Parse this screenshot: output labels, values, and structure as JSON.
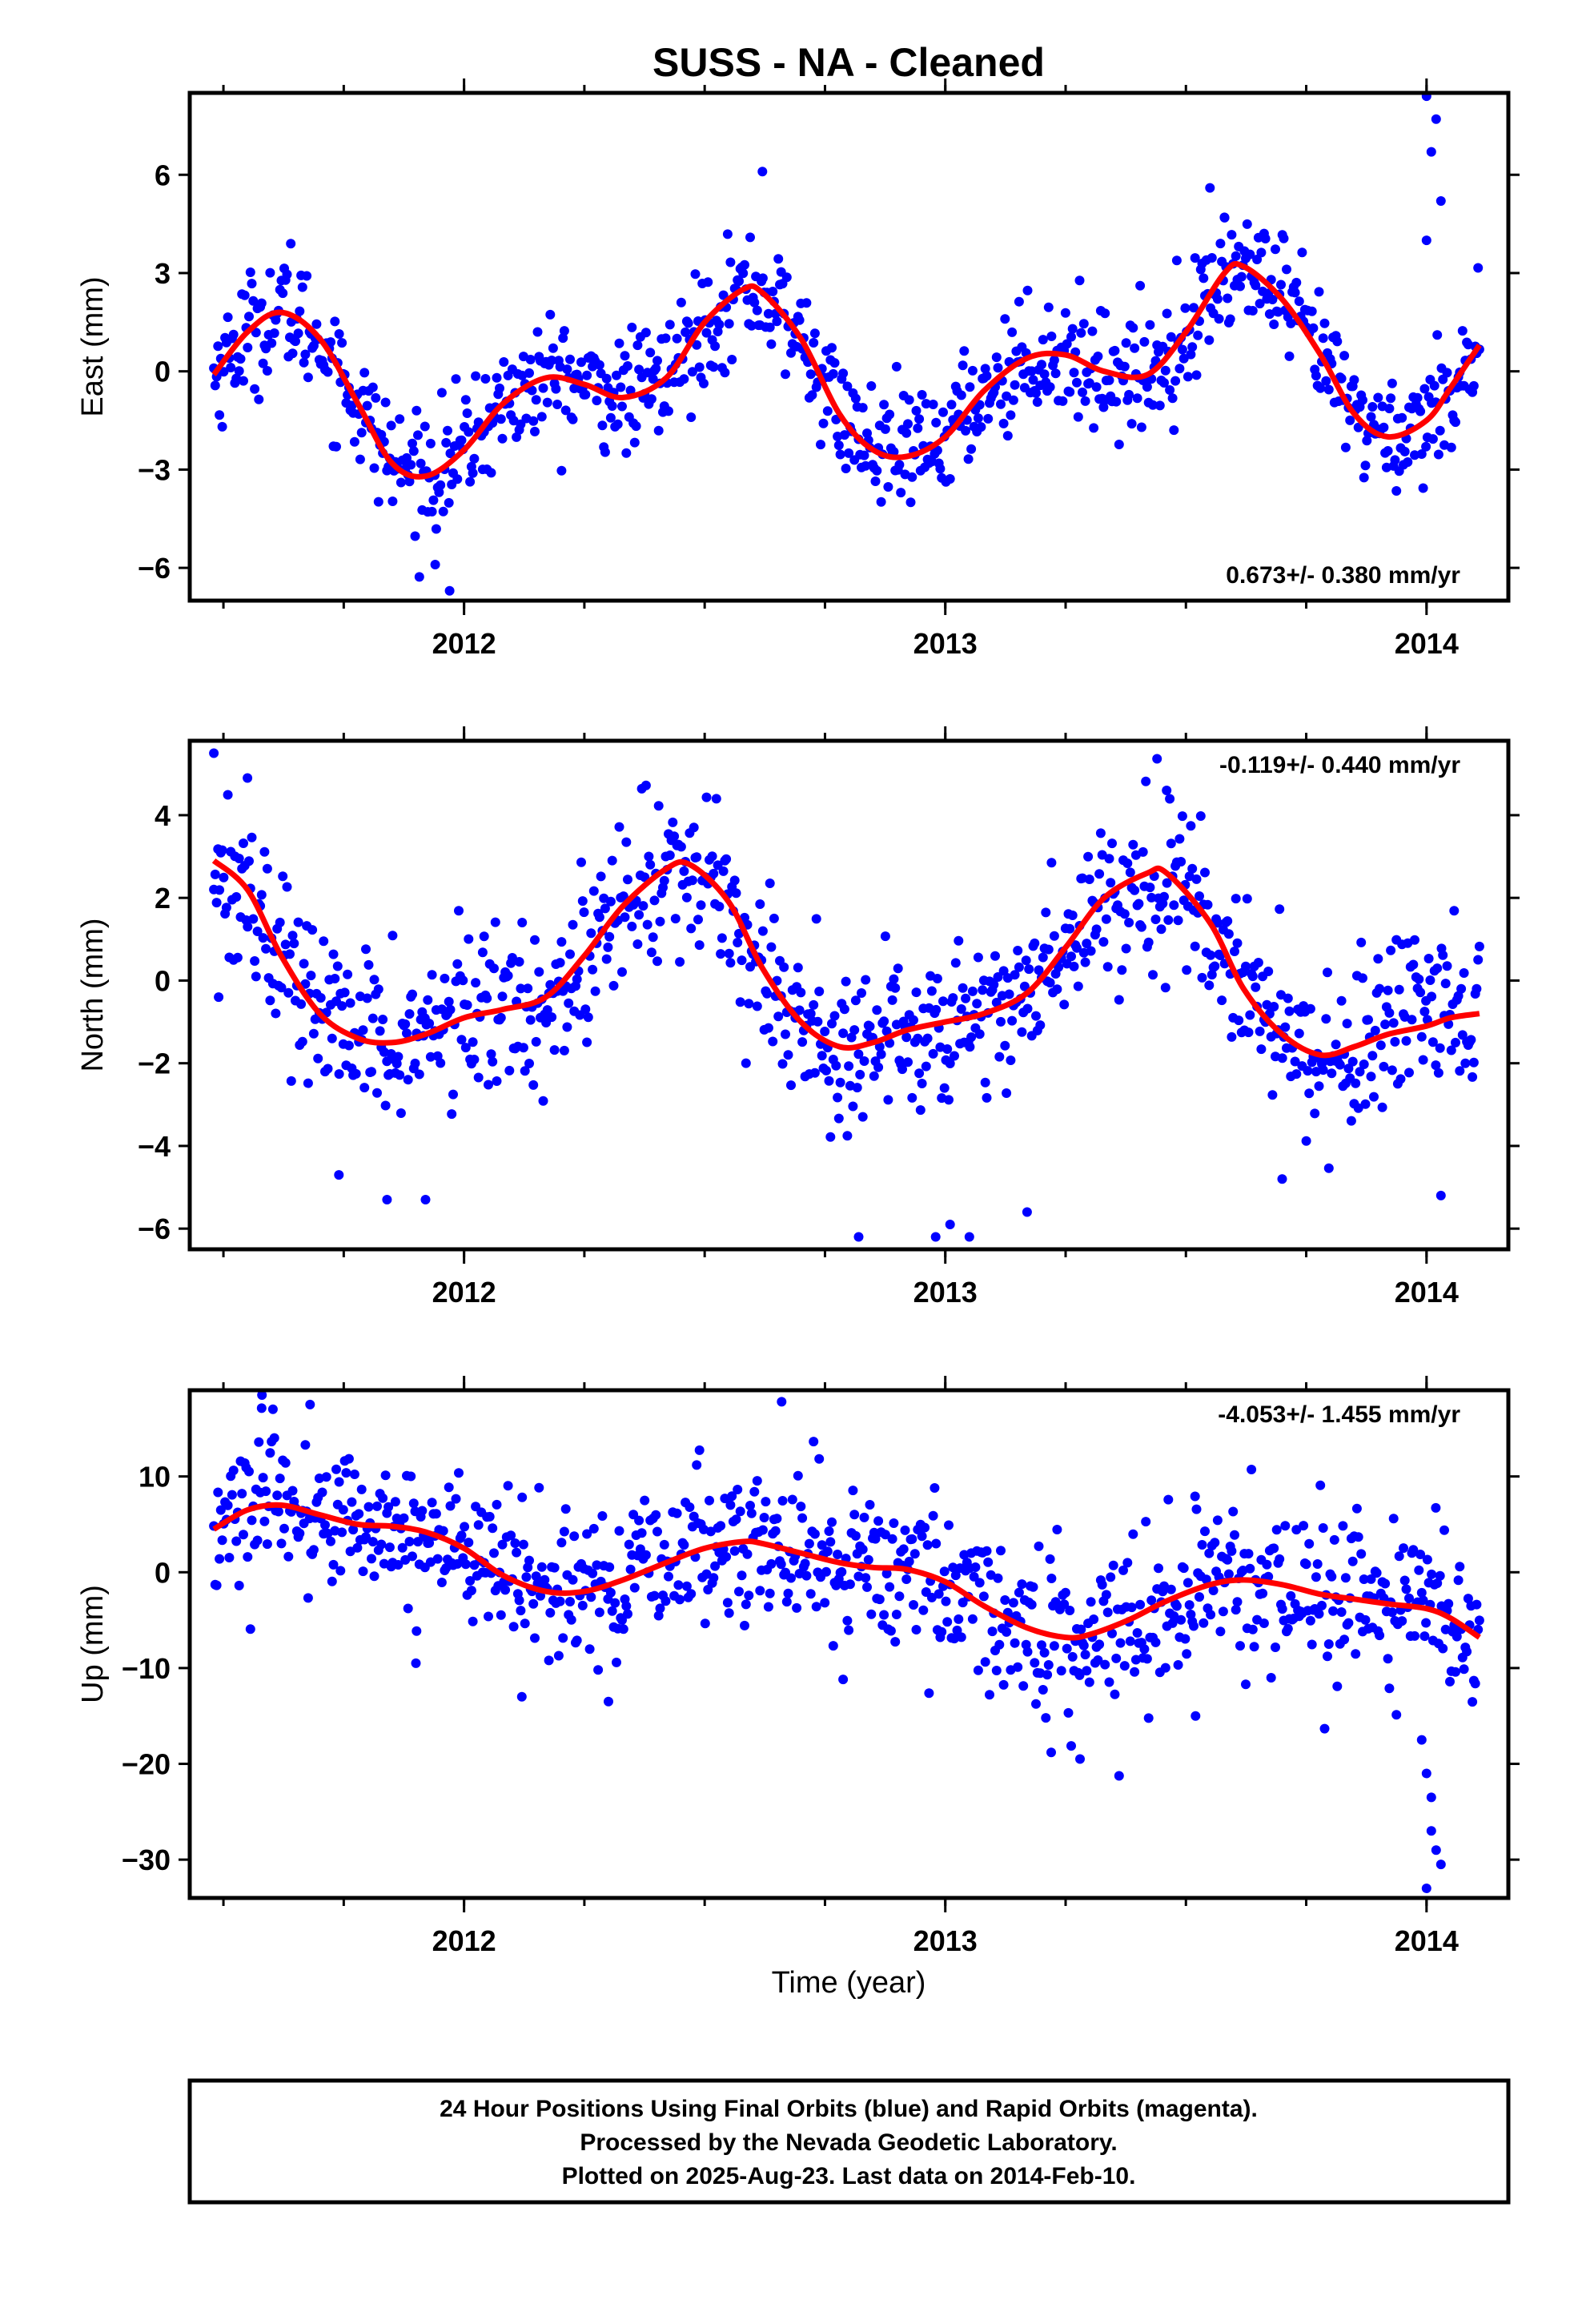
{
  "figure": {
    "title": "SUSS  - NA - Cleaned",
    "xlabel": "Time (year)",
    "caption_lines": [
      "24 Hour Positions Using Final Orbits (blue) and Rapid Orbits (magenta).",
      "Processed by the Nevada Geodetic Laboratory.",
      "Plotted on 2025-Aug-23. Last data on 2014-Feb-10."
    ]
  },
  "colors": {
    "data_points": "#0000ff",
    "model_curve": "#ff0000",
    "frame": "#000000"
  },
  "chart_data": [
    {
      "type": "scatter",
      "ylabel": "East (mm)",
      "rate_label": "0.673+/- 0.380 mm/yr",
      "rate_position": "bottom-right",
      "xlim": [
        2011.43,
        2014.17
      ],
      "ylim": [
        -7.0,
        8.5
      ],
      "yticks": [
        -6,
        -3,
        0,
        3,
        6
      ],
      "ytick_labels": [
        "−6",
        "−3",
        "0",
        "3",
        "6"
      ],
      "xticks": [
        2012,
        2013,
        2014
      ],
      "xtick_labels": [
        "2012",
        "2013",
        "2014"
      ],
      "x_minor_step": 0.25,
      "grid": false,
      "model_curve": {
        "x": [
          2011.48,
          2011.55,
          2011.62,
          2011.7,
          2011.78,
          2011.85,
          2011.92,
          2012.0,
          2012.08,
          2012.17,
          2012.25,
          2012.33,
          2012.42,
          2012.5,
          2012.58,
          2012.62,
          2012.7,
          2012.78,
          2012.85,
          2012.92,
          2013.0,
          2013.08,
          2013.17,
          2013.25,
          2013.33,
          2013.42,
          2013.5,
          2013.58,
          2013.62,
          2013.7,
          2013.78,
          2013.85,
          2013.92,
          2014.0,
          2014.05,
          2014.11
        ],
        "y": [
          -0.1,
          1.2,
          1.8,
          1.0,
          -1.0,
          -2.8,
          -3.2,
          -2.4,
          -1.0,
          -0.2,
          -0.4,
          -0.8,
          -0.2,
          1.5,
          2.5,
          2.4,
          1.0,
          -1.3,
          -2.4,
          -2.6,
          -2.0,
          -0.6,
          0.4,
          0.5,
          0.0,
          -0.1,
          1.2,
          3.0,
          3.2,
          2.2,
          0.5,
          -1.3,
          -2.0,
          -1.5,
          -0.5,
          0.8
        ]
      },
      "daily_points": {
        "note": "Daily 24-hour solutions from 2011.48 to 2014.11; each point is the model value plus scatter.",
        "x_start": 2011.48,
        "x_end": 2014.11,
        "count": 900,
        "scatter_sigma": 0.9
      },
      "outliers": {
        "x": [
          2011.64,
          2011.97,
          2011.94,
          2012.62,
          2014.0,
          2014.01,
          2014.02,
          2014.0,
          2014.03,
          2013.55,
          2013.58
        ],
        "y": [
          3.9,
          -6.7,
          -5.9,
          6.1,
          8.4,
          6.7,
          7.7,
          4.0,
          5.2,
          5.6,
          4.7
        ]
      }
    },
    {
      "type": "scatter",
      "ylabel": "North (mm)",
      "rate_label": "-0.119+/- 0.440 mm/yr",
      "rate_position": "top-right",
      "xlim": [
        2011.43,
        2014.17
      ],
      "ylim": [
        -6.5,
        5.8
      ],
      "yticks": [
        -6,
        -4,
        -2,
        0,
        2,
        4
      ],
      "ytick_labels": [
        "−6",
        "−4",
        "−2",
        "0",
        "2",
        "4"
      ],
      "xticks": [
        2012,
        2013,
        2014
      ],
      "xtick_labels": [
        "2012",
        "2013",
        "2014"
      ],
      "x_minor_step": 0.25,
      "grid": false,
      "model_curve": {
        "x": [
          2011.48,
          2011.55,
          2011.62,
          2011.7,
          2011.78,
          2011.85,
          2011.92,
          2012.0,
          2012.08,
          2012.17,
          2012.25,
          2012.33,
          2012.42,
          2012.47,
          2012.55,
          2012.62,
          2012.7,
          2012.78,
          2012.85,
          2012.92,
          2013.0,
          2013.08,
          2013.17,
          2013.25,
          2013.33,
          2013.42,
          2013.46,
          2013.55,
          2013.62,
          2013.7,
          2013.78,
          2013.85,
          2013.92,
          2014.0,
          2014.05,
          2014.11
        ],
        "y": [
          2.9,
          2.2,
          0.6,
          -0.8,
          -1.4,
          -1.5,
          -1.3,
          -0.9,
          -0.7,
          -0.4,
          0.6,
          1.8,
          2.7,
          2.8,
          1.9,
          0.3,
          -1.0,
          -1.6,
          -1.5,
          -1.2,
          -1.0,
          -0.8,
          -0.3,
          0.8,
          2.0,
          2.6,
          2.6,
          1.4,
          -0.2,
          -1.3,
          -1.8,
          -1.6,
          -1.3,
          -1.1,
          -0.9,
          -0.8
        ]
      },
      "daily_points": {
        "note": "Daily 24-hour solutions from 2011.48 to 2014.11; each point is the model value plus scatter.",
        "x_start": 2011.48,
        "x_end": 2014.11,
        "count": 900,
        "scatter_sigma": 1.0
      },
      "outliers": {
        "x": [
          2011.48,
          2011.49,
          2011.55,
          2011.74,
          2011.84,
          2011.92,
          2012.82,
          2012.98,
          2013.01,
          2013.05,
          2013.17,
          2013.46,
          2013.7,
          2014.03
        ],
        "y": [
          5.5,
          -0.4,
          4.9,
          -4.7,
          -5.3,
          -5.3,
          -6.2,
          -6.2,
          -5.9,
          -6.2,
          -5.6,
          4.6,
          -4.8,
          -5.2
        ]
      }
    },
    {
      "type": "scatter",
      "ylabel": "Up (mm)",
      "rate_label": "-4.053+/- 1.455 mm/yr",
      "rate_position": "top-right",
      "xlim": [
        2011.43,
        2014.17
      ],
      "ylim": [
        -34,
        19
      ],
      "yticks": [
        -30,
        -20,
        -10,
        0,
        10
      ],
      "ytick_labels": [
        "−30",
        "−20",
        "−10",
        "0",
        "10"
      ],
      "xticks": [
        2012,
        2013,
        2014
      ],
      "xtick_labels": [
        "2012",
        "2013",
        "2014"
      ],
      "x_minor_step": 0.25,
      "grid": false,
      "model_curve": {
        "x": [
          2011.48,
          2011.55,
          2011.62,
          2011.7,
          2011.78,
          2011.85,
          2011.92,
          2012.0,
          2012.08,
          2012.17,
          2012.25,
          2012.33,
          2012.42,
          2012.5,
          2012.58,
          2012.62,
          2012.7,
          2012.78,
          2012.85,
          2012.92,
          2013.0,
          2013.08,
          2013.17,
          2013.25,
          2013.3,
          2013.38,
          2013.46,
          2013.55,
          2013.62,
          2013.7,
          2013.78,
          2013.85,
          2013.92,
          2014.0,
          2014.05,
          2014.11
        ],
        "y": [
          4.5,
          6.5,
          7.0,
          6.0,
          5.0,
          4.8,
          4.2,
          2.5,
          -0.3,
          -2.0,
          -2.0,
          -0.8,
          1.0,
          2.5,
          3.2,
          3.0,
          2.0,
          1.0,
          0.5,
          0.3,
          -1.0,
          -3.5,
          -5.8,
          -6.8,
          -6.5,
          -5.0,
          -3.0,
          -1.3,
          -0.8,
          -1.3,
          -2.3,
          -2.8,
          -3.3,
          -3.8,
          -4.8,
          -6.8
        ]
      },
      "daily_points": {
        "note": "Daily 24-hour solutions from 2011.48 to 2014.11; each point is the model value plus scatter.",
        "x_start": 2011.48,
        "x_end": 2014.11,
        "count": 900,
        "scatter_sigma": 4.0
      },
      "outliers": {
        "x": [
          2011.58,
          2011.68,
          2011.9,
          2012.12,
          2012.3,
          2012.66,
          2013.22,
          2013.28,
          2013.52,
          2013.99,
          2014.0,
          2014.01,
          2014.01,
          2014.02,
          2014.03,
          2014.0
        ],
        "y": [
          18.5,
          17.5,
          -9.5,
          -13.0,
          -13.5,
          17.8,
          -18.8,
          -19.5,
          -15.0,
          -17.5,
          -21.0,
          -23.5,
          -27.0,
          -29.0,
          -30.5,
          -33.0
        ]
      }
    }
  ]
}
